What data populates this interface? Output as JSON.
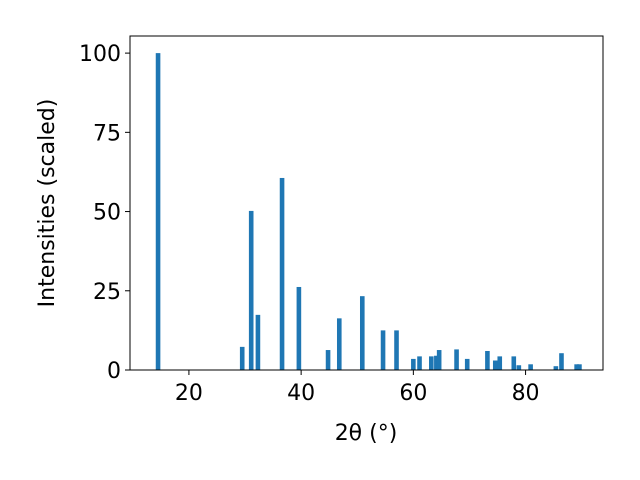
{
  "chart_data": {
    "type": "bar",
    "xlabel": "2θ (°)",
    "ylabel": "Intensities (scaled)",
    "x": [
      14.5,
      29.5,
      31.1,
      32.3,
      36.6,
      39.6,
      44.8,
      46.8,
      50.9,
      54.6,
      57.0,
      60.0,
      61.1,
      63.2,
      64.1,
      64.6,
      67.7,
      69.6,
      73.2,
      74.6,
      75.4,
      77.9,
      78.8,
      80.9,
      85.4,
      86.4,
      89.1,
      89.6
    ],
    "values": [
      100,
      7.3,
      50.2,
      17.4,
      60.6,
      26.2,
      6.3,
      16.3,
      23.3,
      12.5,
      12.5,
      3.5,
      4.3,
      4.3,
      4.5,
      6.3,
      6.5,
      3.5,
      6.0,
      3.0,
      4.3,
      4.3,
      1.5,
      1.8,
      1.2,
      5.3,
      1.8,
      1.8
    ],
    "color": "#1f77b4",
    "xlim": [
      9.5,
      93.8
    ],
    "xticks": [
      20,
      40,
      60,
      80
    ],
    "ylim": [
      0,
      105.4
    ],
    "yticks": [
      0,
      25,
      50,
      75,
      100
    ]
  }
}
